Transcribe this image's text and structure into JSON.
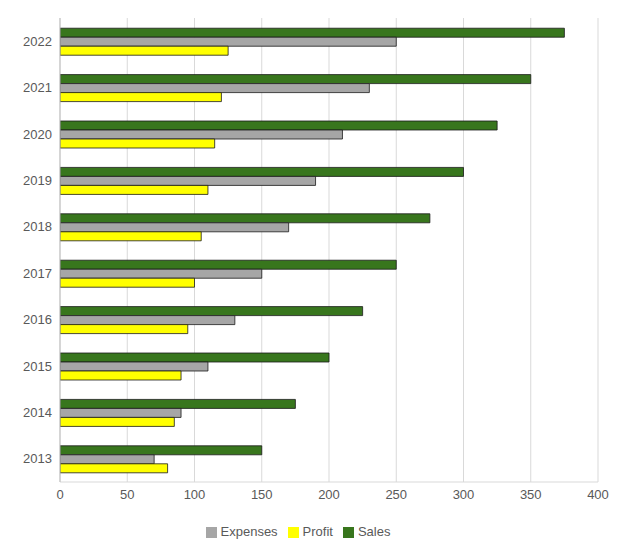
{
  "chart_data": {
    "type": "bar",
    "orientation": "horizontal",
    "categories": [
      "2013",
      "2014",
      "2015",
      "2016",
      "2017",
      "2018",
      "2019",
      "2020",
      "2021",
      "2022"
    ],
    "series": [
      {
        "name": "Sales",
        "color": "#38761d",
        "values": [
          150,
          175,
          200,
          225,
          250,
          275,
          300,
          325,
          350,
          375
        ]
      },
      {
        "name": "Expenses",
        "color": "#a6a6a6",
        "values": [
          70,
          90,
          110,
          130,
          150,
          170,
          190,
          210,
          230,
          250
        ]
      },
      {
        "name": "Profit",
        "color": "#ffff00",
        "values": [
          80,
          85,
          90,
          95,
          100,
          105,
          110,
          115,
          120,
          125
        ]
      }
    ],
    "xlim": [
      0,
      400
    ],
    "xticks": [
      0,
      50,
      100,
      150,
      200,
      250,
      300,
      350,
      400
    ],
    "grid": true,
    "legend": "bottom"
  }
}
